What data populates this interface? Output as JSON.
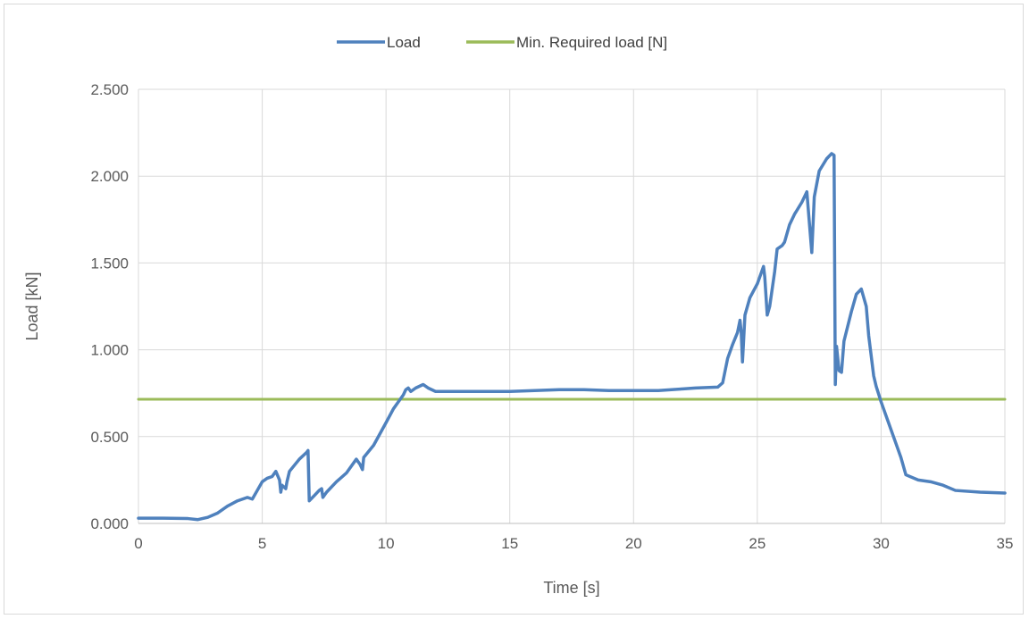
{
  "chart_data": {
    "type": "line",
    "title": "",
    "xlabel": "Time [s]",
    "ylabel": "Load [kN]",
    "xlim": [
      0,
      35
    ],
    "ylim": [
      0,
      2.5
    ],
    "x_ticks": [
      0,
      5,
      10,
      15,
      20,
      25,
      30,
      35
    ],
    "x_tick_labels": [
      "0",
      "5",
      "10",
      "15",
      "20",
      "25",
      "30",
      "35"
    ],
    "y_ticks": [
      0,
      0.5,
      1.0,
      1.5,
      2.0,
      2.5
    ],
    "y_tick_labels": [
      "0.000",
      "0.500",
      "1.000",
      "1.500",
      "2.000",
      "2.500"
    ],
    "grid": true,
    "legend_position": "top-center",
    "legend": [
      "Load",
      "Min. Required load [N]"
    ],
    "series": [
      {
        "name": "Load",
        "color": "#4f81bd",
        "x": [
          0,
          1,
          2,
          2.4,
          2.8,
          3.2,
          3.6,
          4,
          4.4,
          4.6,
          4.8,
          5,
          5.2,
          5.4,
          5.55,
          5.7,
          5.75,
          5.8,
          5.95,
          6,
          6.1,
          6.5,
          6.8,
          6.85,
          6.9,
          7.1,
          7.3,
          7.4,
          7.45,
          7.6,
          8,
          8.4,
          8.8,
          8.95,
          9.05,
          9.1,
          9.5,
          10,
          10.3,
          10.5,
          10.7,
          10.8,
          10.9,
          11,
          11.2,
          11.5,
          11.7,
          12,
          13,
          14,
          15,
          16,
          17,
          18,
          19,
          20,
          21,
          22,
          22.5,
          23.4,
          23.6,
          23.8,
          24,
          24.2,
          24.3,
          24.35,
          24.4,
          24.5,
          24.7,
          25,
          25.25,
          25.3,
          25.4,
          25.5,
          25.7,
          25.8,
          26,
          26.1,
          26.3,
          26.5,
          26.8,
          27,
          27.2,
          27.3,
          27.5,
          27.8,
          28,
          28.1,
          28.15,
          28.2,
          28.3,
          28.4,
          28.5,
          28.8,
          29,
          29.2,
          29.4,
          29.5,
          29.7,
          29.8,
          30,
          30.3,
          30.6,
          30.8,
          31,
          31.5,
          32,
          32.5,
          33,
          34,
          35
        ],
        "y": [
          0.03,
          0.03,
          0.028,
          0.022,
          0.035,
          0.06,
          0.1,
          0.13,
          0.15,
          0.14,
          0.19,
          0.24,
          0.26,
          0.27,
          0.3,
          0.25,
          0.18,
          0.22,
          0.2,
          0.24,
          0.3,
          0.37,
          0.41,
          0.42,
          0.13,
          0.16,
          0.19,
          0.2,
          0.15,
          0.18,
          0.24,
          0.29,
          0.37,
          0.34,
          0.31,
          0.38,
          0.45,
          0.58,
          0.66,
          0.7,
          0.74,
          0.77,
          0.78,
          0.76,
          0.78,
          0.8,
          0.78,
          0.76,
          0.76,
          0.76,
          0.76,
          0.765,
          0.77,
          0.77,
          0.765,
          0.765,
          0.765,
          0.775,
          0.78,
          0.785,
          0.81,
          0.95,
          1.03,
          1.1,
          1.17,
          1.1,
          0.93,
          1.2,
          1.3,
          1.38,
          1.48,
          1.42,
          1.2,
          1.25,
          1.45,
          1.58,
          1.6,
          1.62,
          1.72,
          1.78,
          1.85,
          1.91,
          1.56,
          1.88,
          2.03,
          2.1,
          2.13,
          2.12,
          0.8,
          1.02,
          0.88,
          0.87,
          1.05,
          1.22,
          1.32,
          1.35,
          1.25,
          1.08,
          0.85,
          0.79,
          0.7,
          0.58,
          0.46,
          0.38,
          0.28,
          0.25,
          0.24,
          0.22,
          0.19,
          0.18,
          0.175
        ]
      },
      {
        "name": "Min. Required load [N]",
        "color": "#9bbb59",
        "x": [
          0,
          35
        ],
        "y": [
          0.715,
          0.715
        ]
      }
    ]
  }
}
